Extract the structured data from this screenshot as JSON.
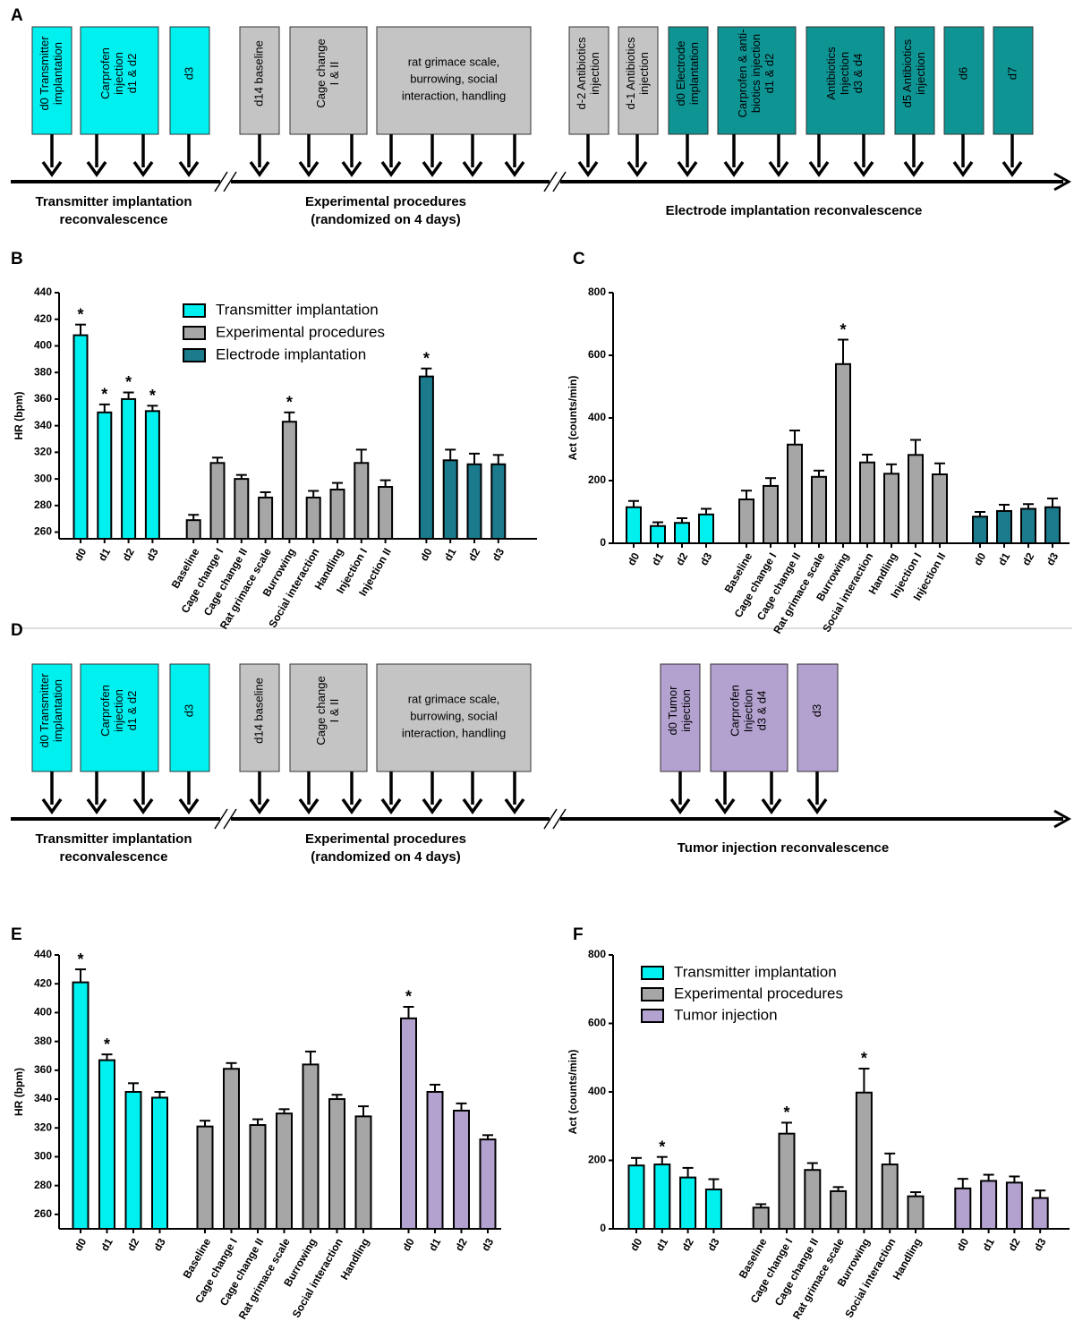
{
  "timelines": [
    {
      "panel": "A",
      "boxes": [
        {
          "lines": [
            "d0 Transmitter",
            "implantation"
          ],
          "color": "#00f0f0"
        },
        {
          "lines": [
            "Carprofen",
            "injection",
            "d1 & d2"
          ],
          "color": "#00f0f0"
        },
        {
          "lines": [
            "d3"
          ],
          "color": "#00f0f0"
        },
        {
          "lines": [
            "d14 baseline"
          ],
          "color": "#c4c4c4"
        },
        {
          "lines": [
            "Cage change",
            "I & II"
          ],
          "color": "#c4c4c4"
        },
        {
          "lines": [
            "rat grimace scale,",
            "burrowing, social",
            "interaction, handling"
          ],
          "color": "#c4c4c4"
        },
        {
          "lines": [
            "d-2 Antibiotics",
            "injection"
          ],
          "color": "#c4c4c4"
        },
        {
          "lines": [
            "d-1 Antibiotics",
            "injection"
          ],
          "color": "#c4c4c4"
        },
        {
          "lines": [
            "d0 Electrode",
            "implantation"
          ],
          "color": "#0f9494"
        },
        {
          "lines": [
            "Carprofen & anti-",
            "biotics injection",
            "d1 & d2"
          ],
          "color": "#0f9494"
        },
        {
          "lines": [
            "Antibiotics",
            "Injection",
            "d3 & d4"
          ],
          "color": "#0f9494"
        },
        {
          "lines": [
            "d5 Antibiotics",
            "injection"
          ],
          "color": "#0f9494"
        },
        {
          "lines": [
            "d6"
          ],
          "color": "#0f9494"
        },
        {
          "lines": [
            "d7"
          ],
          "color": "#0f9494"
        }
      ],
      "phases": [
        {
          "lines": [
            "Transmitter implantation",
            "reconvalescence"
          ]
        },
        {
          "lines": [
            "Experimental procedures",
            "(randomized on 4 days)"
          ]
        },
        {
          "lines": [
            "Electrode implantation reconvalescence"
          ]
        }
      ]
    },
    {
      "panel": "D",
      "boxes": [
        {
          "lines": [
            "d0 Transmitter",
            "implantation"
          ],
          "color": "#00f0f0"
        },
        {
          "lines": [
            "Carprofen",
            "injection",
            "d1 & d2"
          ],
          "color": "#00f0f0"
        },
        {
          "lines": [
            "d3"
          ],
          "color": "#00f0f0"
        },
        {
          "lines": [
            "d14 baseline"
          ],
          "color": "#c4c4c4"
        },
        {
          "lines": [
            "Cage change",
            "I & II"
          ],
          "color": "#c4c4c4"
        },
        {
          "lines": [
            "rat grimace scale,",
            "burrowing, social",
            "interaction, handling"
          ],
          "color": "#c4c4c4"
        },
        {
          "lines": [
            "d0 Tumor",
            "injection"
          ],
          "color": "#b3a2d0"
        },
        {
          "lines": [
            "Carprofen",
            "Injection",
            "d3 & d4"
          ],
          "color": "#b3a2d0"
        },
        {
          "lines": [
            "d3"
          ],
          "color": "#b3a2d0"
        }
      ],
      "phases": [
        {
          "lines": [
            "Transmitter implantation",
            "reconvalescence"
          ]
        },
        {
          "lines": [
            "Experimental procedures",
            "(randomized on 4 days)"
          ]
        },
        {
          "lines": [
            "Tumor injection reconvalescence"
          ]
        }
      ]
    }
  ],
  "chart_data": [
    {
      "type": "bar",
      "panel": "B",
      "ylabel": "HR (bpm)",
      "ylim": [
        255,
        440
      ],
      "yticks": [
        260,
        280,
        300,
        320,
        340,
        360,
        380,
        400,
        420,
        440
      ],
      "legend": "upper-left",
      "categories": [
        "d0",
        "d1",
        "d2",
        "d3",
        "Baseline",
        "Cage change I",
        "Cage change II",
        "Rat grimace scale",
        "Burrowing",
        "Social interaction",
        "Handling",
        "Injection I",
        "Injection II",
        "d0",
        "d1",
        "d2",
        "d3"
      ],
      "series": [
        {
          "name": "Transmitter implantation",
          "color": "#00f0f0",
          "values": [
            408,
            350,
            360,
            351,
            null,
            null,
            null,
            null,
            null,
            null,
            null,
            null,
            null,
            null,
            null,
            null,
            null
          ],
          "errors": [
            8,
            6,
            5,
            4,
            null,
            null,
            null,
            null,
            null,
            null,
            null,
            null,
            null,
            null,
            null,
            null,
            null
          ],
          "annotations": [
            "*",
            "*",
            "*",
            "*",
            null,
            null,
            null,
            null,
            null,
            null,
            null,
            null,
            null,
            null,
            null,
            null,
            null
          ]
        },
        {
          "name": "Experimental procedures",
          "color": "#a6a6a6",
          "values": [
            null,
            null,
            null,
            null,
            269,
            312,
            300,
            286,
            343,
            286,
            292,
            312,
            294,
            null,
            null,
            null,
            null
          ],
          "errors": [
            null,
            null,
            null,
            null,
            4,
            4,
            3,
            4,
            7,
            5,
            5,
            10,
            5,
            null,
            null,
            null,
            null
          ],
          "annotations": [
            null,
            null,
            null,
            null,
            null,
            null,
            null,
            null,
            "*",
            null,
            null,
            null,
            null,
            null,
            null,
            null,
            null
          ]
        },
        {
          "name": "Electrode implantation",
          "color": "#1b7a8c",
          "values": [
            null,
            null,
            null,
            null,
            null,
            null,
            null,
            null,
            null,
            null,
            null,
            null,
            null,
            377,
            314,
            311,
            311
          ],
          "errors": [
            null,
            null,
            null,
            null,
            null,
            null,
            null,
            null,
            null,
            null,
            null,
            null,
            null,
            6,
            8,
            8,
            7
          ],
          "annotations": [
            null,
            null,
            null,
            null,
            null,
            null,
            null,
            null,
            null,
            null,
            null,
            null,
            null,
            "*",
            null,
            null,
            null
          ]
        }
      ]
    },
    {
      "type": "bar",
      "panel": "C",
      "ylabel": "Act (counts/min)",
      "ylim": [
        0,
        800
      ],
      "yticks": [
        0,
        200,
        400,
        600,
        800
      ],
      "categories": [
        "d0",
        "d1",
        "d2",
        "d3",
        "Baseline",
        "Cage change I",
        "Cage change II",
        "Rat grimace scale",
        "Burrowing",
        "Social interaction",
        "Handling",
        "Injection I",
        "Injection II",
        "d0",
        "d1",
        "d2",
        "d3"
      ],
      "series": [
        {
          "color": "#00f0f0",
          "values": [
            115,
            55,
            65,
            92,
            null,
            null,
            null,
            null,
            null,
            null,
            null,
            null,
            null,
            null,
            null,
            null,
            null
          ],
          "errors": [
            20,
            12,
            15,
            18,
            null,
            null,
            null,
            null,
            null,
            null,
            null,
            null,
            null,
            null,
            null,
            null,
            null
          ]
        },
        {
          "color": "#a6a6a6",
          "values": [
            null,
            null,
            null,
            null,
            140,
            183,
            315,
            212,
            572,
            258,
            222,
            282,
            220,
            null,
            null,
            null,
            null
          ],
          "errors": [
            null,
            null,
            null,
            null,
            28,
            25,
            45,
            20,
            78,
            25,
            30,
            48,
            35,
            null,
            null,
            null,
            null
          ],
          "annotations": [
            null,
            null,
            null,
            null,
            null,
            null,
            null,
            null,
            "*",
            null,
            null,
            null,
            null,
            null,
            null,
            null,
            null
          ]
        },
        {
          "color": "#1b7a8c",
          "values": [
            null,
            null,
            null,
            null,
            null,
            null,
            null,
            null,
            null,
            null,
            null,
            null,
            null,
            85,
            103,
            110,
            115
          ],
          "errors": [
            null,
            null,
            null,
            null,
            null,
            null,
            null,
            null,
            null,
            null,
            null,
            null,
            null,
            15,
            20,
            15,
            28
          ]
        }
      ]
    },
    {
      "type": "bar",
      "panel": "E",
      "ylabel": "HR (bpm)",
      "ylim": [
        250,
        440
      ],
      "yticks": [
        260,
        280,
        300,
        320,
        340,
        360,
        380,
        400,
        420,
        440
      ],
      "categories": [
        "d0",
        "d1",
        "d2",
        "d3",
        "Baseline",
        "Cage change I",
        "Cage change II",
        "Rat grimace scale",
        "Burrowing",
        "Social interaction",
        "Handling",
        "d0",
        "d1",
        "d2",
        "d3"
      ],
      "series": [
        {
          "color": "#00f0f0",
          "values": [
            421,
            367,
            345,
            341,
            null,
            null,
            null,
            null,
            null,
            null,
            null,
            null,
            null,
            null,
            null
          ],
          "errors": [
            9,
            4,
            6,
            4,
            null,
            null,
            null,
            null,
            null,
            null,
            null,
            null,
            null,
            null,
            null
          ],
          "annotations": [
            "*",
            "*",
            null,
            null,
            null,
            null,
            null,
            null,
            null,
            null,
            null,
            null,
            null,
            null,
            null
          ]
        },
        {
          "color": "#a6a6a6",
          "values": [
            null,
            null,
            null,
            null,
            321,
            361,
            322,
            330,
            364,
            340,
            328,
            null,
            null,
            null,
            null
          ],
          "errors": [
            null,
            null,
            null,
            null,
            4,
            4,
            4,
            3,
            9,
            3,
            7,
            null,
            null,
            null,
            null
          ]
        },
        {
          "color": "#b3a2d0",
          "values": [
            null,
            null,
            null,
            null,
            null,
            null,
            null,
            null,
            null,
            null,
            null,
            396,
            345,
            332,
            312
          ],
          "errors": [
            null,
            null,
            null,
            null,
            null,
            null,
            null,
            null,
            null,
            null,
            null,
            8,
            5,
            5,
            3
          ],
          "annotations": [
            null,
            null,
            null,
            null,
            null,
            null,
            null,
            null,
            null,
            null,
            null,
            "*",
            null,
            null,
            null
          ]
        }
      ]
    },
    {
      "type": "bar",
      "panel": "F",
      "ylabel": "Act (counts/min)",
      "ylim": [
        0,
        800
      ],
      "yticks": [
        0,
        200,
        400,
        600,
        800
      ],
      "legend": "upper-left",
      "categories": [
        "d0",
        "d1",
        "d2",
        "d3",
        "Baseline",
        "Cage change I",
        "Cage change II",
        "Rat grimace scale",
        "Burrowing",
        "Social interaction",
        "Handling",
        "d0",
        "d1",
        "d2",
        "d3"
      ],
      "series": [
        {
          "name": "Transmitter implantation",
          "color": "#00f0f0",
          "values": [
            185,
            188,
            150,
            115,
            null,
            null,
            null,
            null,
            null,
            null,
            null,
            null,
            null,
            null,
            null
          ],
          "errors": [
            22,
            22,
            28,
            30,
            null,
            null,
            null,
            null,
            null,
            null,
            null,
            null,
            null,
            null,
            null
          ],
          "annotations": [
            null,
            "*",
            null,
            null,
            null,
            null,
            null,
            null,
            null,
            null,
            null,
            null,
            null,
            null,
            null
          ]
        },
        {
          "name": "Experimental procedures",
          "color": "#a6a6a6",
          "values": [
            null,
            null,
            null,
            null,
            62,
            278,
            172,
            110,
            398,
            188,
            95,
            null,
            null,
            null,
            null
          ],
          "errors": [
            null,
            null,
            null,
            null,
            10,
            32,
            20,
            12,
            70,
            32,
            12,
            null,
            null,
            null,
            null
          ],
          "annotations": [
            null,
            null,
            null,
            null,
            null,
            "*",
            null,
            null,
            "*",
            null,
            null,
            null,
            null,
            null,
            null
          ]
        },
        {
          "name": "Tumor injection",
          "color": "#b3a2d0",
          "values": [
            null,
            null,
            null,
            null,
            null,
            null,
            null,
            null,
            null,
            null,
            null,
            118,
            140,
            135,
            90
          ],
          "errors": [
            null,
            null,
            null,
            null,
            null,
            null,
            null,
            null,
            null,
            null,
            null,
            28,
            18,
            18,
            22
          ]
        }
      ]
    }
  ]
}
